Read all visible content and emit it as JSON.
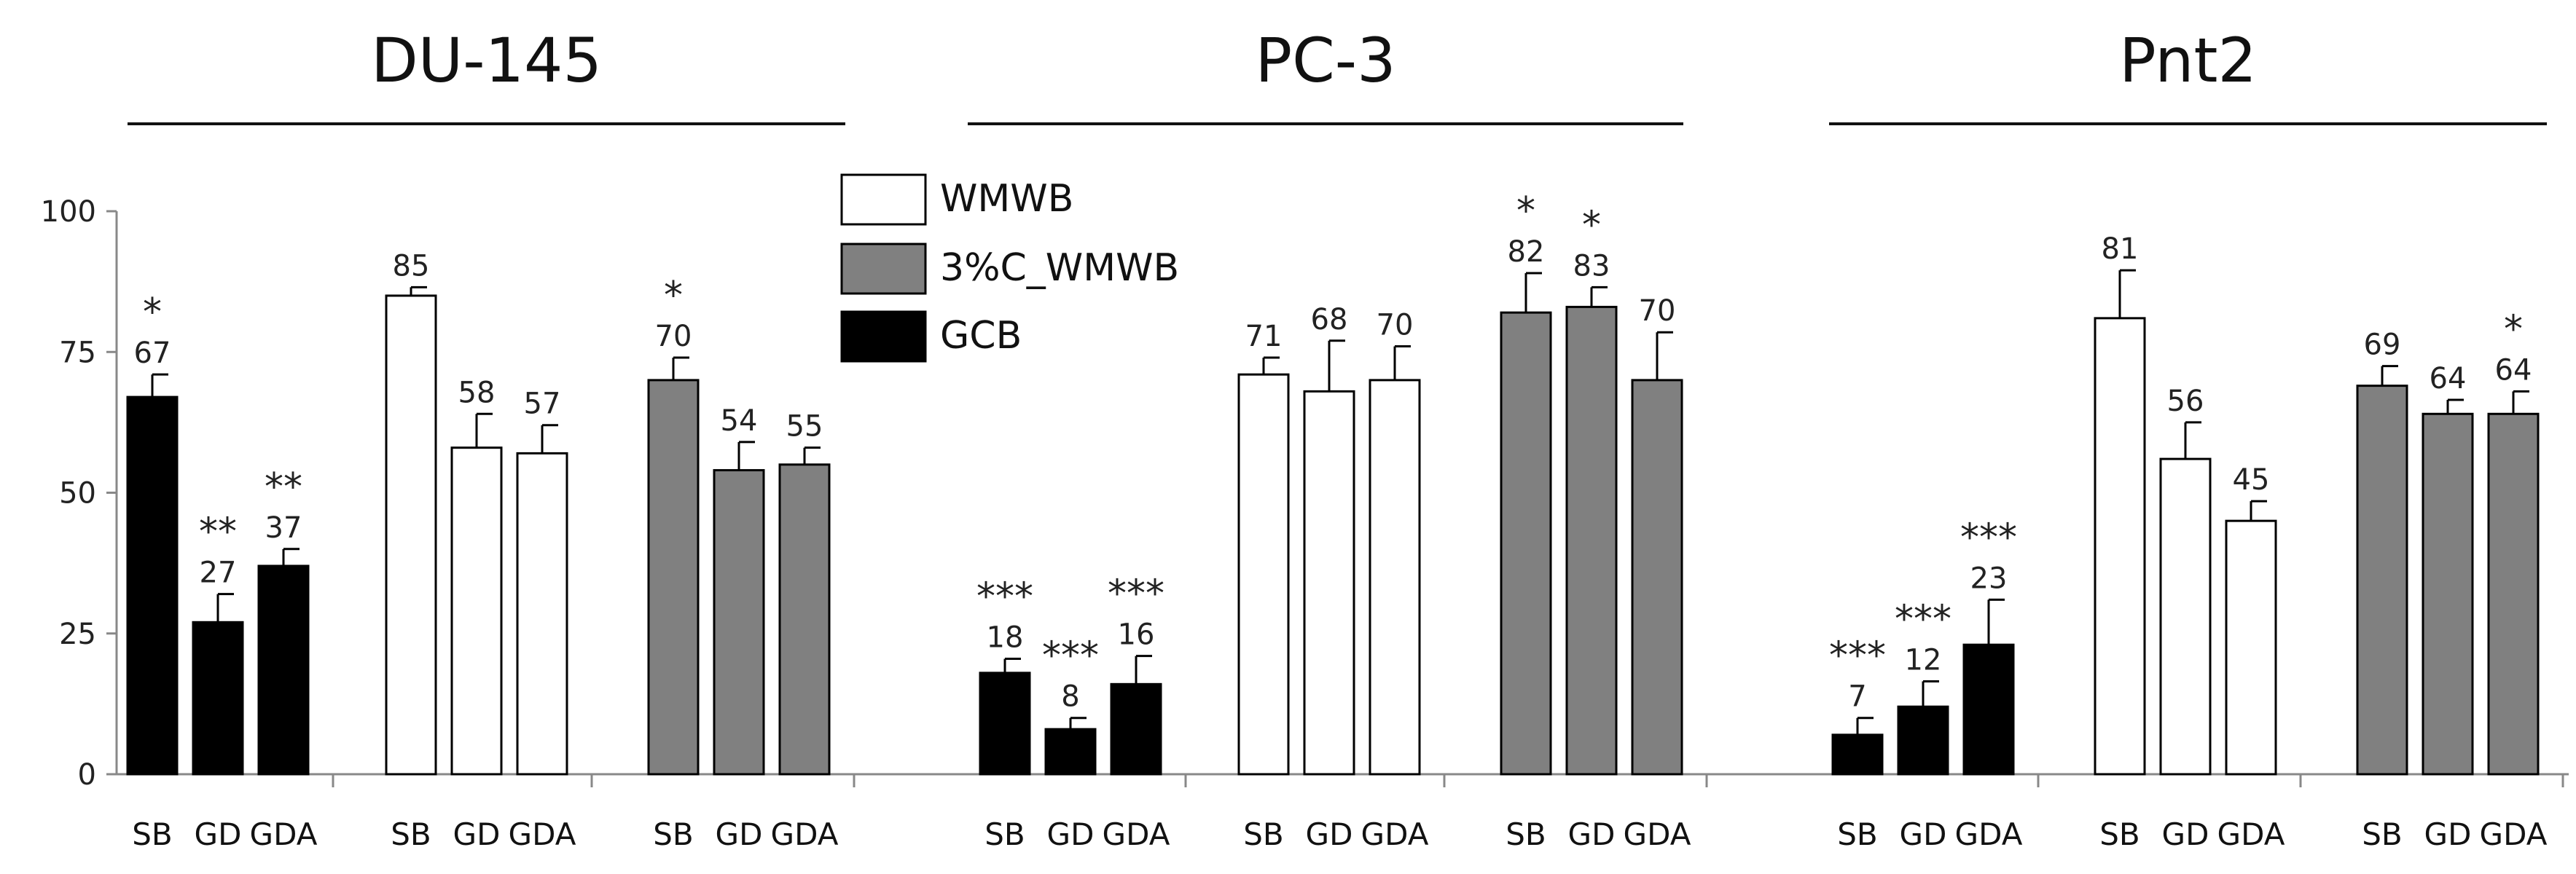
{
  "chart_data": {
    "type": "bar",
    "ylim": [
      0,
      100
    ],
    "yticks": [
      "0",
      "25",
      "50",
      "75",
      "100"
    ],
    "grid": false,
    "legend_position": "top-center",
    "series": [
      {
        "name": "WMWB",
        "color": "#ffffff"
      },
      {
        "name": "3%C_WMWB",
        "color": "#808080"
      },
      {
        "name": "GCB",
        "color": "#000000"
      }
    ],
    "categories": [
      "SB",
      "GD",
      "GDA"
    ],
    "groups": [
      {
        "title": "DU-145",
        "blocks": [
          {
            "series": "GCB",
            "bars": [
              {
                "cat": "SB",
                "value": 67,
                "err": 4,
                "label": "67",
                "sig": "*"
              },
              {
                "cat": "GD",
                "value": 27,
                "err": 5,
                "label": "27",
                "sig": "**"
              },
              {
                "cat": "GDA",
                "value": 37,
                "err": 3,
                "label": "37",
                "sig": "**"
              }
            ]
          },
          {
            "series": "WMWB",
            "bars": [
              {
                "cat": "SB",
                "value": 85,
                "err": 1.5,
                "label": "85",
                "sig": ""
              },
              {
                "cat": "GD",
                "value": 58,
                "err": 6,
                "label": "58",
                "sig": ""
              },
              {
                "cat": "GDA",
                "value": 57,
                "err": 5,
                "label": "57",
                "sig": ""
              }
            ]
          },
          {
            "series": "3%C_WMWB",
            "bars": [
              {
                "cat": "SB",
                "value": 70,
                "err": 4,
                "label": "70",
                "sig": "*"
              },
              {
                "cat": "GD",
                "value": 54,
                "err": 5,
                "label": "54",
                "sig": ""
              },
              {
                "cat": "GDA",
                "value": 55,
                "err": 3,
                "label": "55",
                "sig": ""
              }
            ]
          }
        ]
      },
      {
        "title": "PC-3",
        "blocks": [
          {
            "series": "GCB",
            "bars": [
              {
                "cat": "SB",
                "value": 18,
                "err": 2.5,
                "label": "18",
                "sig": "***"
              },
              {
                "cat": "GD",
                "value": 8,
                "err": 2,
                "label": "8",
                "sig": "***"
              },
              {
                "cat": "GDA",
                "value": 16,
                "err": 5,
                "label": "16",
                "sig": "***"
              }
            ]
          },
          {
            "series": "WMWB",
            "bars": [
              {
                "cat": "SB",
                "value": 71,
                "err": 3,
                "label": "71",
                "sig": ""
              },
              {
                "cat": "GD",
                "value": 68,
                "err": 9,
                "label": "68",
                "sig": ""
              },
              {
                "cat": "GDA",
                "value": 70,
                "err": 6,
                "label": "70",
                "sig": ""
              }
            ]
          },
          {
            "series": "3%C_WMWB",
            "bars": [
              {
                "cat": "SB",
                "value": 82,
                "err": 7,
                "label": "82",
                "sig": "*"
              },
              {
                "cat": "GD",
                "value": 83,
                "err": 3.5,
                "label": "83",
                "sig": "*"
              },
              {
                "cat": "GDA",
                "value": 70,
                "err": 8.5,
                "label": "70",
                "sig": ""
              }
            ]
          }
        ]
      },
      {
        "title": "Pnt2",
        "blocks": [
          {
            "series": "GCB",
            "bars": [
              {
                "cat": "SB",
                "value": 7,
                "err": 3,
                "label": "7",
                "sig": "***"
              },
              {
                "cat": "GD",
                "value": 12,
                "err": 4.5,
                "label": "12",
                "sig": "***"
              },
              {
                "cat": "GDA",
                "value": 23,
                "err": 8,
                "label": "23",
                "sig": "***"
              }
            ]
          },
          {
            "series": "WMWB",
            "bars": [
              {
                "cat": "SB",
                "value": 81,
                "err": 8.5,
                "label": "81",
                "sig": ""
              },
              {
                "cat": "GD",
                "value": 56,
                "err": 6.5,
                "label": "56",
                "sig": ""
              },
              {
                "cat": "GDA",
                "value": 45,
                "err": 3.5,
                "label": "45",
                "sig": ""
              }
            ]
          },
          {
            "series": "3%C_WMWB",
            "bars": [
              {
                "cat": "SB",
                "value": 69,
                "err": 3.5,
                "label": "69",
                "sig": ""
              },
              {
                "cat": "GD",
                "value": 64,
                "err": 2.5,
                "label": "64",
                "sig": ""
              },
              {
                "cat": "GDA",
                "value": 64,
                "err": 4,
                "label": "64",
                "sig": "*"
              }
            ]
          }
        ]
      }
    ]
  }
}
